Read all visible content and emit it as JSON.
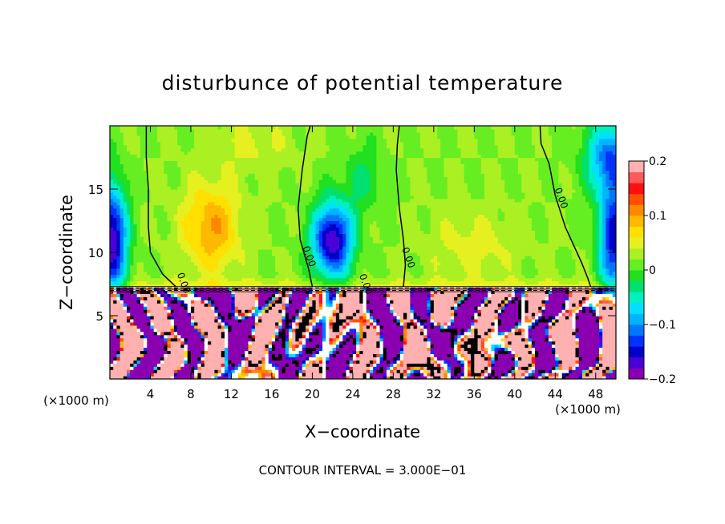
{
  "chart_data": {
    "type": "heatmap",
    "title": "disturbunce of potential temperature",
    "xlabel": "X−coordinate",
    "ylabel": "Z−coordinate",
    "x_unit_left": "(×1000 m)",
    "x_unit_right": "(×1000 m)",
    "footer": "CONTOUR INTERVAL = 3.000E−01",
    "xlim": [
      0,
      50
    ],
    "ylim": [
      0,
      20
    ],
    "x_ticks": [
      {
        "value": 4,
        "label": "4"
      },
      {
        "value": 8,
        "label": "8"
      },
      {
        "value": 12,
        "label": "12"
      },
      {
        "value": 16,
        "label": "16"
      },
      {
        "value": 20,
        "label": "20"
      },
      {
        "value": 24,
        "label": "24"
      },
      {
        "value": 28,
        "label": "28"
      },
      {
        "value": 32,
        "label": "32"
      },
      {
        "value": 36,
        "label": "36"
      },
      {
        "value": 40,
        "label": "40"
      },
      {
        "value": 44,
        "label": "44"
      },
      {
        "value": 48,
        "label": "48"
      }
    ],
    "y_ticks": [
      {
        "value": 5,
        "label": "5"
      },
      {
        "value": 10,
        "label": "10"
      },
      {
        "value": 15,
        "label": "15"
      }
    ],
    "colorbar": {
      "min": -0.2,
      "max": 0.2,
      "ticks": [
        {
          "value": 0.2,
          "label": "0.2"
        },
        {
          "value": 0.1,
          "label": "0.1"
        },
        {
          "value": 0,
          "label": "0"
        },
        {
          "value": -0.1,
          "label": "−0.1"
        },
        {
          "value": -0.2,
          "label": "−0.2"
        }
      ],
      "colors": [
        "#8a00b0",
        "#4b00d8",
        "#0000c8",
        "#0033ff",
        "#0077ff",
        "#00b4ff",
        "#00e0ff",
        "#00f0c0",
        "#00e070",
        "#20e020",
        "#66ee22",
        "#aaf022",
        "#e6f020",
        "#ffe000",
        "#ffb800",
        "#ff8800",
        "#ff5000",
        "#ff1010",
        "#ff5a5a",
        "#ffb0b0"
      ]
    },
    "contour_labels": [
      {
        "x": 7.0,
        "z": 7.5,
        "text": "0.00"
      },
      {
        "x": 19.4,
        "z": 9.6,
        "text": "0.00"
      },
      {
        "x": 29.2,
        "z": 9.5,
        "text": "0.00"
      },
      {
        "x": 44.3,
        "z": 14.2,
        "text": "0.00"
      },
      {
        "x": 25.0,
        "z": 7.4,
        "text": "0.00"
      }
    ],
    "zero_contours": [
      [
        [
          3.6,
          20
        ],
        [
          3.6,
          17.5
        ],
        [
          3.8,
          15
        ],
        [
          3.8,
          12
        ],
        [
          4.0,
          10
        ],
        [
          5.2,
          8.3
        ],
        [
          6.5,
          7.3
        ]
      ],
      [
        [
          19.8,
          20
        ],
        [
          19.5,
          19.2
        ],
        [
          19.0,
          16.5
        ],
        [
          18.6,
          13.5
        ],
        [
          18.8,
          11
        ],
        [
          19.6,
          8.8
        ],
        [
          20.0,
          7.3
        ]
      ],
      [
        [
          28.6,
          20
        ],
        [
          28.4,
          18.5
        ],
        [
          28.3,
          16.5
        ],
        [
          28.6,
          13.5
        ],
        [
          29.0,
          11
        ],
        [
          29.2,
          9.0
        ],
        [
          29.0,
          7.3
        ]
      ],
      [
        [
          42.5,
          20
        ],
        [
          42.6,
          18.6
        ],
        [
          43.4,
          17.0
        ],
        [
          44.0,
          14.5
        ],
        [
          45.0,
          12
        ],
        [
          46.6,
          9.2
        ],
        [
          47.2,
          8.0
        ],
        [
          47.5,
          7.3
        ]
      ]
    ],
    "field": {
      "base_upper": 0.02,
      "upper_features": [
        {
          "x": 0.2,
          "z": 11.0,
          "sx": 1.5,
          "sz": 4.5,
          "amp": -0.2
        },
        {
          "x": 22.0,
          "z": 11.0,
          "sx": 2.0,
          "sz": 3.0,
          "amp": -0.2
        },
        {
          "x": 49.8,
          "z": 11.0,
          "sx": 1.5,
          "sz": 4.5,
          "amp": -0.17
        },
        {
          "x": 49.5,
          "z": 17.5,
          "sx": 2.5,
          "sz": 3.0,
          "amp": -0.13
        },
        {
          "x": 10.0,
          "z": 12.0,
          "sx": 2.8,
          "sz": 3.5,
          "amp": 0.08
        },
        {
          "x": 36.0,
          "z": 10.5,
          "sx": 4.5,
          "sz": 2.5,
          "amp": 0.03
        },
        {
          "x": 14.0,
          "z": 18.5,
          "sx": 4.0,
          "sz": 2.0,
          "amp": 0.025
        },
        {
          "x": 25.0,
          "z": 16.0,
          "sx": 2.0,
          "sz": 3.0,
          "amp": -0.04
        }
      ],
      "boundary_z": 7.3,
      "lower_seed": 7
    }
  }
}
